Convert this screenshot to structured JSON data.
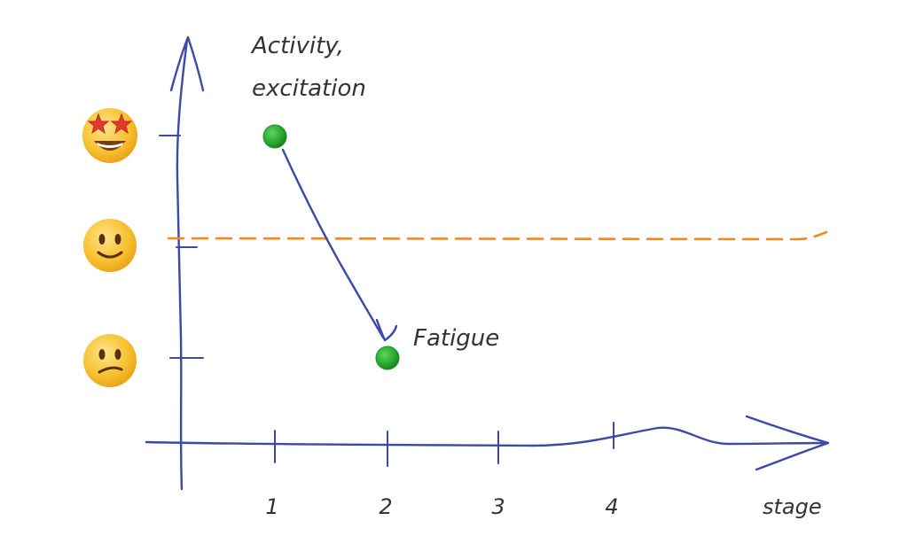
{
  "annotations": {
    "activity_line1": "Activity,",
    "activity_line2": "excitation",
    "fatigue": "Fatigue"
  },
  "x_axis": {
    "label": "stage",
    "ticks": [
      "1",
      "2",
      "3",
      "4"
    ]
  },
  "y_axis": {
    "levels": [
      {
        "icon": "star-struck-face-icon",
        "name": "star-struck"
      },
      {
        "icon": "slightly-smiling-face-icon",
        "name": "slightly-smiling"
      },
      {
        "icon": "confused-face-icon",
        "name": "confused"
      }
    ]
  },
  "points": [
    {
      "stage": 1,
      "mood": "star-struck"
    },
    {
      "stage": 2,
      "mood": "confused"
    }
  ],
  "baseline": {
    "mood": "slightly-smiling"
  },
  "colors": {
    "axis": "#3b4aa8",
    "point": "#22a22a",
    "baseline": "#f08a1c",
    "text": "#333333",
    "face": "#f7c02e"
  }
}
